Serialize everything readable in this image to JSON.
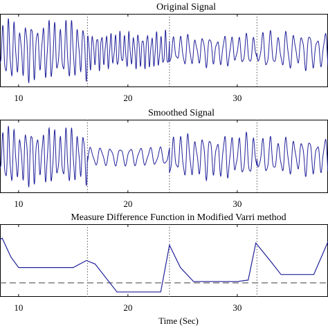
{
  "x_axis_label": "Time (Sec)",
  "colors": {
    "signal": "#1f1f9a",
    "segment_boundary": "#555555",
    "threshold": "#555555",
    "frame": "#000000"
  },
  "chart_data": [
    {
      "type": "line",
      "title": "Original Signal",
      "xlim": [
        8.3,
        38.3
      ],
      "xticks": [
        10,
        20,
        30
      ],
      "tick_labels": [
        "10",
        "20",
        "30"
      ],
      "segment_boundaries": [
        16.3,
        23.8,
        31.8
      ],
      "segments": [
        {
          "x_start": 8.3,
          "x_end": 16.3,
          "cycles_per_sec": 1.9,
          "amplitude": 0.95,
          "envelope": "beating"
        },
        {
          "x_start": 16.3,
          "x_end": 23.8,
          "cycles_per_sec": 2.4,
          "amplitude": 0.6,
          "envelope": "dense"
        },
        {
          "x_start": 23.8,
          "x_end": 31.8,
          "cycles_per_sec": 1.5,
          "amplitude": 0.5,
          "envelope": "beating"
        },
        {
          "x_start": 31.8,
          "x_end": 38.3,
          "cycles_per_sec": 1.4,
          "amplitude": 0.6,
          "envelope": "beating"
        }
      ]
    },
    {
      "type": "line",
      "title": "Smoothed Signal",
      "xlim": [
        8.3,
        38.3
      ],
      "xticks": [
        10,
        20,
        30
      ],
      "tick_labels": [
        "10",
        "20",
        "30"
      ],
      "segment_boundaries": [
        16.3,
        23.8,
        31.8
      ],
      "segments": [
        {
          "x_start": 8.3,
          "x_end": 16.3,
          "cycles_per_sec": 1.9,
          "amplitude": 0.9,
          "envelope": "beating"
        },
        {
          "x_start": 16.3,
          "x_end": 23.8,
          "cycles_per_sec": 1.1,
          "amplitude": 0.28,
          "envelope": "steady"
        },
        {
          "x_start": 23.8,
          "x_end": 31.8,
          "cycles_per_sec": 1.5,
          "amplitude": 0.7,
          "envelope": "beating"
        },
        {
          "x_start": 31.8,
          "x_end": 38.3,
          "cycles_per_sec": 1.4,
          "amplitude": 0.6,
          "envelope": "beating"
        }
      ]
    },
    {
      "type": "line",
      "title": "Measure Difference Function in Modified Varri method",
      "xlim": [
        8.3,
        38.3
      ],
      "ylim": [
        0,
        1
      ],
      "xticks": [
        10,
        20,
        30
      ],
      "tick_labels": [
        "10",
        "20",
        "30"
      ],
      "segment_boundaries": [
        16.3,
        23.8,
        31.8
      ],
      "threshold": 0.18,
      "x": [
        8.3,
        8.5,
        9.3,
        10.0,
        15.0,
        16.2,
        17.0,
        19.0,
        23.0,
        23.8,
        24.8,
        26.0,
        27.0,
        30.0,
        31.0,
        31.7,
        33.0,
        34.0,
        37.0,
        38.3
      ],
      "y": [
        0.8,
        0.82,
        0.55,
        0.4,
        0.4,
        0.5,
        0.45,
        0.05,
        0.05,
        0.72,
        0.4,
        0.2,
        0.2,
        0.2,
        0.22,
        0.75,
        0.5,
        0.3,
        0.3,
        0.77
      ]
    }
  ]
}
